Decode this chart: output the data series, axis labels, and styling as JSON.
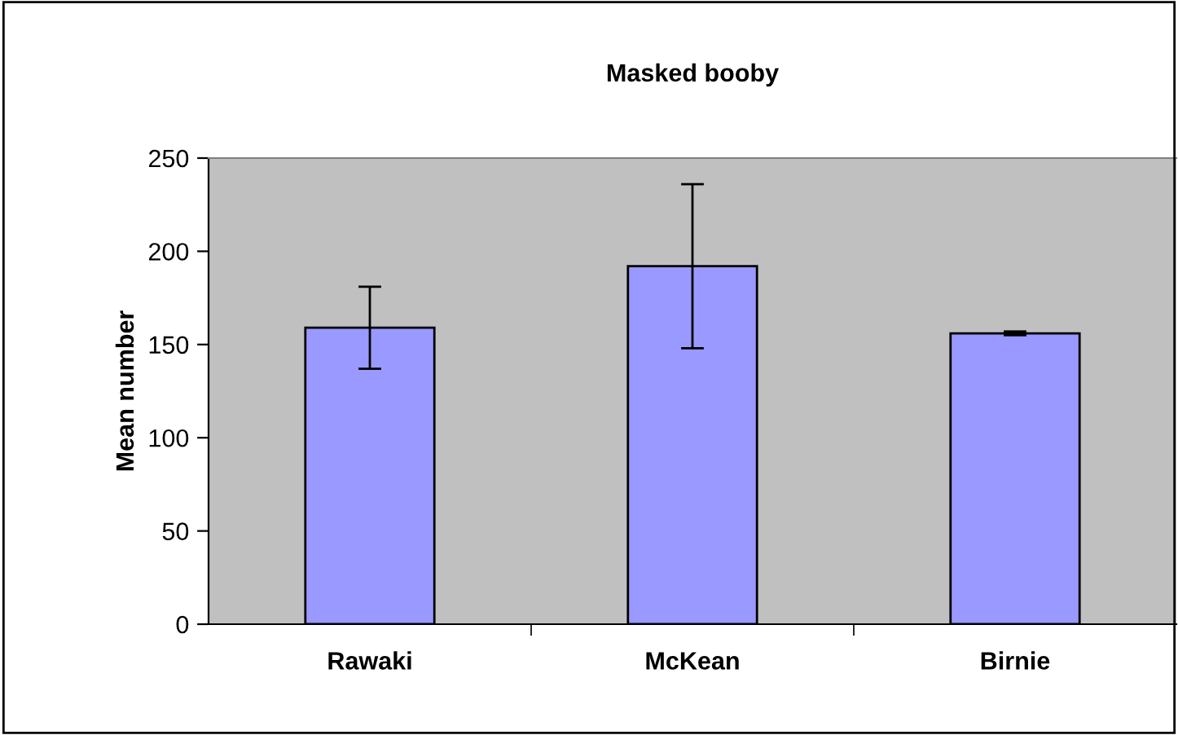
{
  "chart_data": {
    "type": "bar",
    "title": "Masked booby",
    "ylabel": "Mean number",
    "categories": [
      "Rawaki",
      "McKean",
      "Birnie"
    ],
    "values": [
      159,
      192,
      156
    ],
    "errors": [
      22,
      44,
      1
    ],
    "color": "#9999ff",
    "ylim": [
      0,
      250
    ],
    "yticks": [
      0,
      50,
      100,
      150,
      200,
      250
    ],
    "grid": false
  }
}
